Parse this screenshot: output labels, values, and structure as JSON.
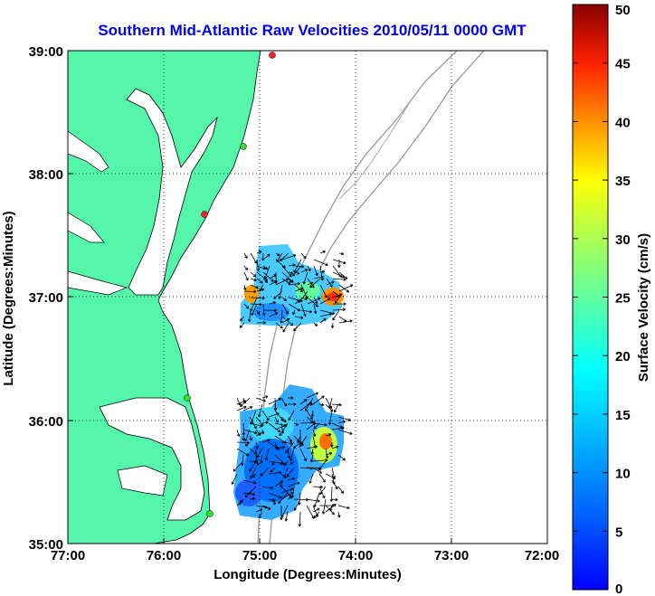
{
  "title": "Southern Mid-Atlantic Raw Velocities 2010/05/11 0000 GMT",
  "map": {
    "xlabel": "Longitude (Degrees:Minutes)",
    "ylabel": "Latitude (Degrees:Minutes)",
    "x_ticks": [
      "77:00",
      "76:00",
      "75:00",
      "74:00",
      "73:00",
      "72:00"
    ],
    "y_ticks": [
      "39:00",
      "38:00",
      "37:00",
      "36:00",
      "35:00"
    ],
    "land_color": "#55f5aa",
    "grid": "dotted"
  },
  "colorbar": {
    "label": "Surface Velocity (cm/s)",
    "min": 0,
    "max": 50,
    "ticks": [
      "50",
      "45",
      "40",
      "35",
      "30",
      "25",
      "20",
      "15",
      "10",
      "5",
      "0"
    ],
    "colormap": "jet"
  }
}
